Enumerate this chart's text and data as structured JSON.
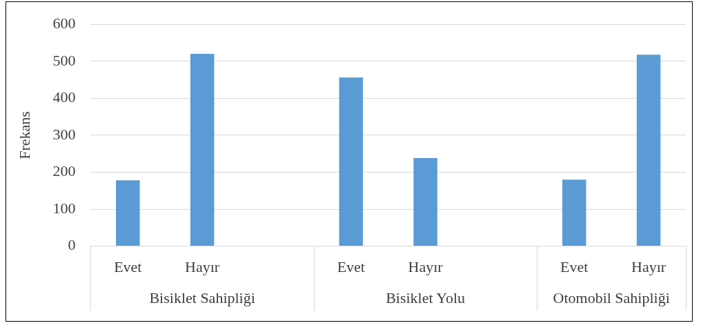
{
  "chart_data": {
    "type": "bar",
    "ylabel": "Frekans",
    "categories": [
      "Evet",
      "Hayır",
      null,
      "Evet",
      "Hayır",
      null,
      "Evet",
      "Hayır"
    ],
    "values": [
      178,
      520,
      null,
      456,
      238,
      null,
      180,
      518
    ],
    "color": "#5b9bd5",
    "annotations": [
      "Bisiklet Sahipliği",
      "Bisiklet Yolu",
      "Otomobil Sahipliği"
    ],
    "ylim": [
      0,
      600
    ],
    "yticks": [
      0,
      100,
      200,
      300,
      400,
      500,
      600
    ],
    "grid": "y",
    "legend": false
  }
}
